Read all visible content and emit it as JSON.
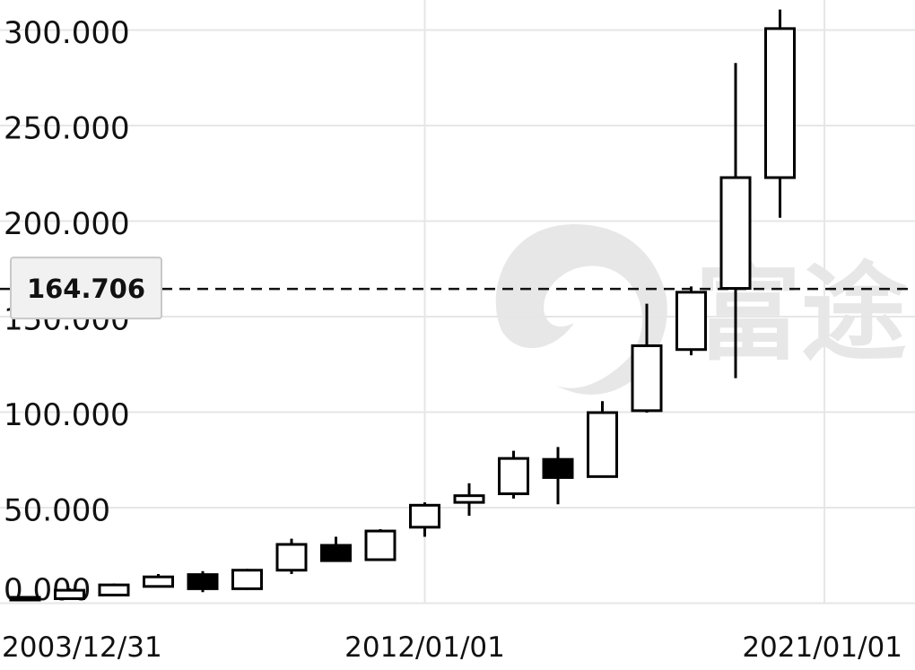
{
  "chart_data": {
    "type": "candlestick",
    "title": "",
    "xlabel": "",
    "ylabel": "",
    "ylim": [
      0,
      310
    ],
    "y_ticks": [
      "0.000",
      "50.000",
      "100.000",
      "150.000",
      "200.000",
      "250.000",
      "300.000"
    ],
    "y_tick_values": [
      0,
      50,
      100,
      150,
      200,
      250,
      300
    ],
    "x_tick_labels": [
      "2003/12/31",
      "2012/01/01",
      "2021/01/01"
    ],
    "x_tick_candle_index": [
      0,
      9,
      18
    ],
    "grid": true,
    "reference_line": {
      "value": 164.706,
      "label": "164.706"
    },
    "watermark": {
      "text": "富途",
      "color": "#e7e7e7"
    },
    "colors": {
      "up_fill": "#ffffff",
      "down_fill": "#000000",
      "stroke": "#000000",
      "grid": "#e6e6e6"
    },
    "candles": [
      {
        "open": 3.3,
        "high": 3.6,
        "low": 2.4,
        "close": 2.7
      },
      {
        "open": 2.6,
        "high": 8.0,
        "low": 2.5,
        "close": 7.0
      },
      {
        "open": 4.5,
        "high": 10.5,
        "low": 4.3,
        "close": 9.8
      },
      {
        "open": 9.0,
        "high": 15.5,
        "low": 8.5,
        "close": 14.0
      },
      {
        "open": 15.2,
        "high": 17.0,
        "low": 6.0,
        "close": 7.8
      },
      {
        "open": 7.8,
        "high": 18.2,
        "low": 7.2,
        "close": 17.5
      },
      {
        "open": 17.5,
        "high": 34.0,
        "low": 15.5,
        "close": 31.0
      },
      {
        "open": 30.5,
        "high": 35.0,
        "low": 22.5,
        "close": 22.5
      },
      {
        "open": 23.0,
        "high": 39.0,
        "low": 22.5,
        "close": 38.0
      },
      {
        "open": 40.0,
        "high": 53.0,
        "low": 35.0,
        "close": 51.5
      },
      {
        "open": 53.0,
        "high": 63.0,
        "low": 46.0,
        "close": 56.5
      },
      {
        "open": 57.5,
        "high": 80.0,
        "low": 55.0,
        "close": 76.0
      },
      {
        "open": 75.5,
        "high": 82.0,
        "low": 52.0,
        "close": 66.0
      },
      {
        "open": 66.5,
        "high": 106.0,
        "low": 66.0,
        "close": 100.0
      },
      {
        "open": 101.0,
        "high": 157.0,
        "low": 100.0,
        "close": 135.0
      },
      {
        "open": 133.0,
        "high": 166.0,
        "low": 130.0,
        "close": 163.0
      },
      {
        "open": 165.0,
        "high": 283.0,
        "low": 118.0,
        "close": 223.0
      },
      {
        "open": 223.0,
        "high": 311.0,
        "low": 202.0,
        "close": 301.0
      }
    ]
  }
}
